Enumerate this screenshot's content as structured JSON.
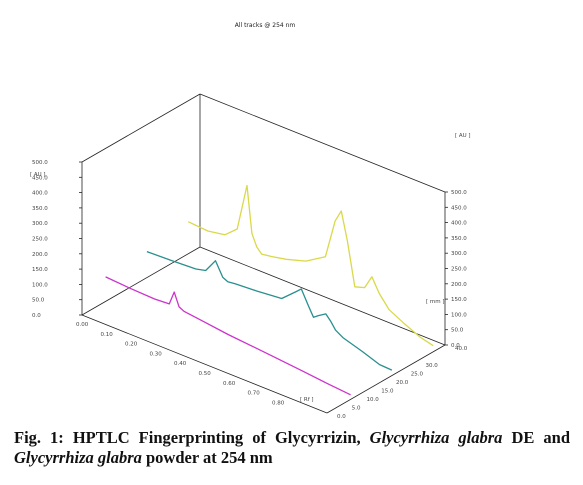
{
  "chart_data": {
    "type": "line",
    "title": "All tracks @ 254 nm",
    "y_unit_left": "[ AU ]",
    "y_unit_right": "[ AU ]",
    "x_unit": "[ Rf ]",
    "z_unit": "[ mm ]",
    "y_ticks_left": [
      "500.0",
      "450.0",
      "400.0",
      "350.0",
      "300.0",
      "250.0",
      "200.0",
      "150.0",
      "100.0",
      "50.0",
      "0.0"
    ],
    "y_ticks_right": [
      "500.0",
      "450.0",
      "400.0",
      "350.0",
      "300.0",
      "250.0",
      "200.0",
      "150.0",
      "100.0",
      "50.0",
      "0.0"
    ],
    "x_ticks": [
      "0.00",
      "0.10",
      "0.20",
      "0.30",
      "0.40",
      "0.50",
      "0.60",
      "0.70",
      "0.80",
      "1.00"
    ],
    "z_ticks": [
      "40.0",
      "30.0",
      "25.0",
      "20.0",
      "15.0",
      "10.0",
      "5.0",
      "0.0"
    ],
    "ylim": [
      0,
      500
    ],
    "xlim": [
      0,
      1
    ],
    "colors": [
      "#cc33cc",
      "#2a8f8f",
      "#d9d94a"
    ],
    "series": [
      {
        "x": [
          0.0,
          0.1,
          0.2,
          0.26,
          0.28,
          0.3,
          0.32,
          0.4,
          0.5,
          0.6,
          0.7,
          0.8,
          0.9,
          1.0
        ],
        "values": [
          80,
          75,
          72,
          75,
          120,
          78,
          70,
          62,
          52,
          45,
          38,
          30,
          22,
          15
        ]
      },
      {
        "x": [
          0.0,
          0.1,
          0.2,
          0.24,
          0.28,
          0.31,
          0.33,
          0.36,
          0.45,
          0.55,
          0.61,
          0.63,
          0.66,
          0.68,
          0.7,
          0.73,
          0.75,
          0.77,
          0.8,
          0.88,
          0.95,
          1.0
        ],
        "values": [
          85,
          88,
          92,
          100,
          145,
          100,
          92,
          95,
          100,
          108,
          150,
          165,
          118,
          88,
          100,
          115,
          98,
          75,
          60,
          40,
          20,
          18
        ]
      },
      {
        "x": [
          0.0,
          0.08,
          0.15,
          0.2,
          0.24,
          0.26,
          0.28,
          0.3,
          0.34,
          0.4,
          0.48,
          0.56,
          0.6,
          0.625,
          0.65,
          0.68,
          0.72,
          0.75,
          0.78,
          0.82,
          0.88,
          0.95,
          1.0
        ],
        "values": [
          105,
          100,
          110,
          145,
          300,
          150,
          112,
          95,
          100,
          110,
          130,
          170,
          300,
          340,
          250,
          110,
          120,
          165,
          120,
          80,
          55,
          30,
          20
        ]
      }
    ]
  },
  "caption": {
    "prefix": "Fig. 1: HPTLC Fingerprinting of Glycyrrizin, ",
    "italic1": "Glycyrrhiza glabra",
    "middle": " DE and ",
    "italic2": "Glycyrrhiza glabra",
    "suffix": " powder at 254 nm"
  }
}
